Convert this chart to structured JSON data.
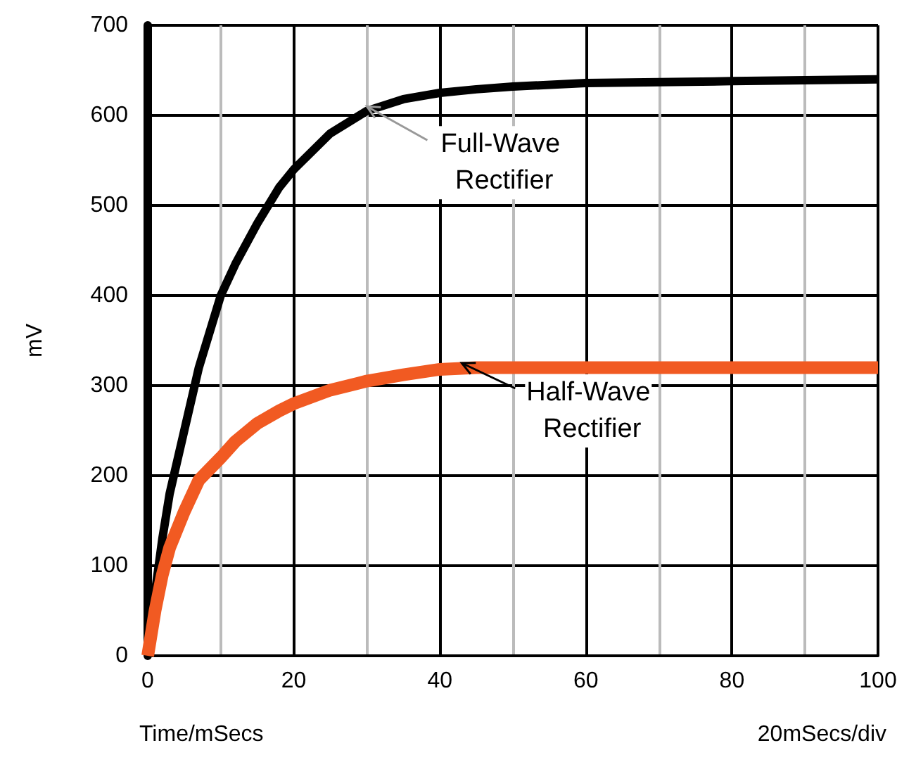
{
  "chart_data": {
    "type": "line",
    "xlabel": "Time/mSecs",
    "ylabel": "mV",
    "xlim": [
      0,
      100
    ],
    "xticks": [
      0,
      20,
      40,
      60,
      80,
      100
    ],
    "ylim": [
      0,
      700
    ],
    "yticks": [
      0,
      100,
      200,
      300,
      400,
      500,
      600,
      700
    ],
    "grid": true,
    "marker": "none",
    "line_style": "solid",
    "x": [
      0,
      1,
      2,
      3,
      5,
      7,
      10,
      12,
      15,
      18,
      20,
      25,
      30,
      35,
      40,
      45,
      50,
      60,
      70,
      80,
      90,
      100
    ],
    "series": [
      {
        "color": "#000000",
        "values": [
          0,
          70,
          130,
          180,
          250,
          320,
          400,
          435,
          480,
          520,
          540,
          580,
          605,
          618,
          625,
          629,
          632,
          636,
          637,
          638,
          639,
          640
        ]
      },
      {
        "color": "#f15a22",
        "values": [
          0,
          50,
          90,
          120,
          160,
          195,
          220,
          238,
          258,
          272,
          280,
          295,
          305,
          312,
          318,
          320,
          320,
          320,
          320,
          320,
          320,
          320
        ]
      }
    ],
    "annotations": [
      {
        "text": "Full-Wave Rectifier",
        "x": 30,
        "y": 610
      },
      {
        "text": "Half-Wave Rectifier",
        "x": 43,
        "y": 325
      },
      "20mSecs/div"
    ]
  }
}
